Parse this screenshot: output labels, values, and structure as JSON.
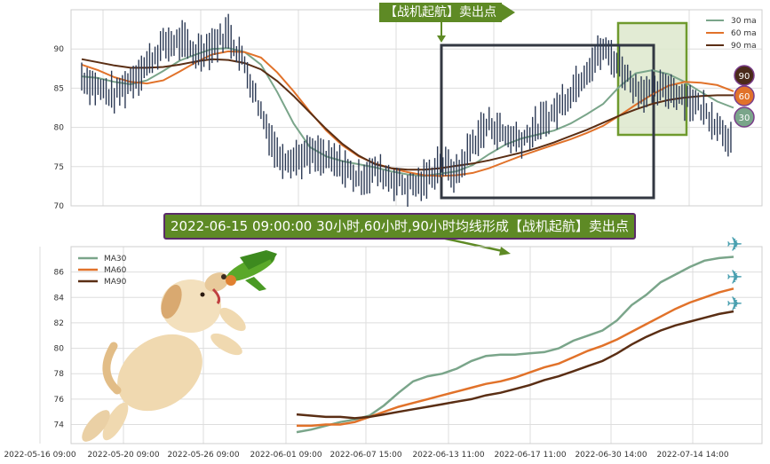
{
  "colors": {
    "ma30": "#7aa58a",
    "ma60": "#e1722a",
    "ma90": "#5a2e14",
    "price": "#2c3a55",
    "grid": "#dddddd",
    "highlight_fill": "#dde8cc",
    "highlight_stroke": "#6f9a2e",
    "box_stroke": "#333842",
    "callout_bg": "#5e8a25",
    "callout_border": "#5a2a6a"
  },
  "annotations": {
    "top_callout": "【战机起航】卖出点",
    "mid_callout": "2022-06-15 09:00:00 30小时,60小时,90小时均线形成【战机起航】卖出点"
  },
  "icons": [
    "dog-icon",
    "toy-plane-icon",
    "airplane-icon"
  ],
  "chart_data": [
    {
      "type": "line",
      "ylim": [
        70,
        95
      ],
      "yticks": [
        70,
        75,
        80,
        85,
        90
      ],
      "grid": true,
      "legend_position": "top-right",
      "series": [
        {
          "name": "30 ma",
          "key": "ma30",
          "values": [
            86.5,
            86.3,
            85.8,
            85.5,
            86.0,
            87.2,
            88.5,
            89.3,
            90.0,
            90.1,
            89.6,
            88.0,
            84.5,
            80.5,
            77.5,
            76.3,
            75.7,
            75.3,
            74.9,
            74.4,
            74.0,
            73.8,
            74.1,
            74.4,
            75.2,
            76.6,
            77.8,
            78.6,
            79.1,
            79.6,
            80.5,
            81.7,
            83.0,
            85.2,
            86.9,
            87.3,
            86.8,
            85.8,
            84.5,
            83.3,
            82.5
          ]
        },
        {
          "name": "60 ma",
          "key": "ma60",
          "values": [
            88.0,
            87.3,
            86.4,
            85.8,
            85.6,
            86.0,
            87.1,
            88.3,
            89.3,
            89.7,
            89.6,
            88.9,
            87.0,
            84.6,
            82.0,
            79.6,
            77.7,
            76.3,
            75.4,
            74.8,
            74.3,
            73.9,
            73.8,
            73.9,
            74.2,
            74.8,
            75.6,
            76.4,
            77.1,
            77.8,
            78.5,
            79.3,
            80.2,
            81.5,
            82.9,
            84.2,
            85.3,
            85.8,
            85.7,
            85.4,
            84.6
          ]
        },
        {
          "name": "90 ma",
          "key": "ma90",
          "values": [
            88.7,
            88.3,
            87.9,
            87.6,
            87.6,
            87.7,
            88.0,
            88.4,
            88.7,
            88.6,
            88.2,
            87.4,
            85.9,
            84.0,
            81.9,
            79.8,
            77.9,
            76.4,
            75.3,
            74.8,
            74.6,
            74.6,
            74.8,
            75.1,
            75.4,
            75.8,
            76.3,
            76.8,
            77.4,
            78.1,
            78.9,
            79.7,
            80.6,
            81.5,
            82.3,
            83.0,
            83.5,
            83.8,
            84.0,
            84.1,
            84.1
          ]
        },
        {
          "name": "price",
          "key": "price",
          "values": [
            86.5,
            85.0,
            84.0,
            86.0,
            88.0,
            90.5,
            91.0,
            89.5,
            90.5,
            92.0,
            88.0,
            82.0,
            76.5,
            76.0,
            76.5,
            76.0,
            75.0,
            73.5,
            74.5,
            73.5,
            72.5,
            73.0,
            75.5,
            74.0,
            78.0,
            80.5,
            79.0,
            78.5,
            80.0,
            82.0,
            84.5,
            87.5,
            90.0,
            88.0,
            85.0,
            84.5,
            85.0,
            84.0,
            82.5,
            80.5,
            78.0
          ]
        }
      ],
      "end_labels": [
        "90",
        "60",
        "30"
      ]
    },
    {
      "type": "line",
      "ylim": [
        72.5,
        88
      ],
      "yticks": [
        74,
        76,
        78,
        80,
        82,
        84,
        86
      ],
      "grid": true,
      "legend_position": "top-left",
      "x_tick_labels": [
        "2022-05-16 09:00",
        "2022-05-20 09:00",
        "2022-05-26 09:00",
        "2022-06-01 09:00",
        "2022-06-07 15:00",
        "2022-06-13 11:00",
        "2022-06-17 11:00",
        "2022-06-30 14:00",
        "2022-07-14 14:00"
      ],
      "series": [
        {
          "name": "MA30",
          "key": "ma30",
          "values": [
            73.4,
            73.6,
            73.9,
            74.2,
            74.4,
            74.7,
            75.5,
            76.5,
            77.4,
            77.8,
            78.0,
            78.4,
            79.0,
            79.4,
            79.5,
            79.5,
            79.6,
            79.7,
            80.0,
            80.6,
            81.0,
            81.4,
            82.2,
            83.4,
            84.2,
            85.2,
            85.8,
            86.4,
            86.9,
            87.1,
            87.2
          ]
        },
        {
          "name": "MA60",
          "key": "ma60",
          "values": [
            73.9,
            73.9,
            74.0,
            74.0,
            74.2,
            74.6,
            75.0,
            75.4,
            75.7,
            76.0,
            76.3,
            76.6,
            76.9,
            77.2,
            77.4,
            77.7,
            78.1,
            78.5,
            78.8,
            79.3,
            79.8,
            80.2,
            80.7,
            81.3,
            81.9,
            82.5,
            83.1,
            83.6,
            84.0,
            84.4,
            84.7
          ]
        },
        {
          "name": "MA90",
          "key": "ma90",
          "values": [
            74.8,
            74.7,
            74.6,
            74.6,
            74.5,
            74.6,
            74.8,
            75.0,
            75.2,
            75.4,
            75.6,
            75.8,
            76.0,
            76.3,
            76.5,
            76.8,
            77.1,
            77.5,
            77.8,
            78.2,
            78.6,
            79.0,
            79.6,
            80.3,
            80.9,
            81.4,
            81.8,
            82.1,
            82.4,
            82.7,
            82.9
          ]
        }
      ]
    }
  ]
}
